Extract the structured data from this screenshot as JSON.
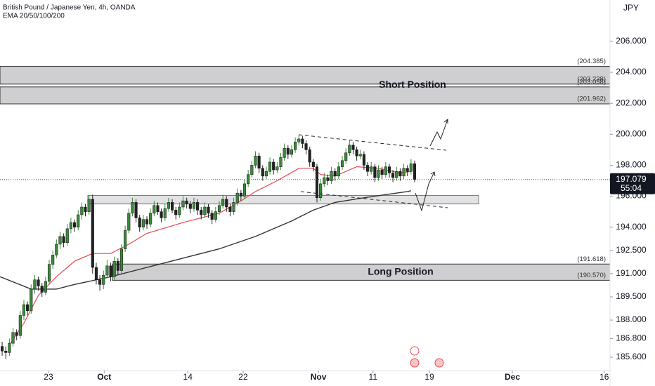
{
  "header": {
    "title": "British Pound / Japanese Yen, 4h, OANDA",
    "indicator": "EMA 20/50/100/200",
    "currency": "JPY"
  },
  "chart_data": {
    "type": "candlestick",
    "up_color": "#3a8a3a",
    "down_color": "#222222",
    "ylim": [
      184.74,
      208.67
    ],
    "xlim": [
      -0.6,
      168
    ],
    "yticks": [
      {
        "value": 206,
        "label": "206.000"
      },
      {
        "value": 204,
        "label": "204.000"
      },
      {
        "value": 202,
        "label": "202.000"
      },
      {
        "value": 200,
        "label": "200.000"
      },
      {
        "value": 198,
        "label": "198.000"
      },
      {
        "value": 196,
        "label": "196.000"
      },
      {
        "value": 194,
        "label": "194.000"
      },
      {
        "value": 192.5,
        "label": "192.500"
      },
      {
        "value": 191,
        "label": "191.000"
      },
      {
        "value": 189.5,
        "label": "189.500"
      },
      {
        "value": 188,
        "label": "188.000"
      },
      {
        "value": 186.8,
        "label": "186.800"
      },
      {
        "value": 185.6,
        "label": "185.600"
      }
    ],
    "xticks": [
      {
        "value": 12.8,
        "label": "23"
      },
      {
        "value": 28.2,
        "label": "Oct"
      },
      {
        "value": 51.3,
        "label": "14"
      },
      {
        "value": 66.6,
        "label": "22"
      },
      {
        "value": 87.4,
        "label": "Nov"
      },
      {
        "value": 102.5,
        "label": "11"
      },
      {
        "value": 118.1,
        "label": "19"
      },
      {
        "value": 141,
        "label": "Dec"
      },
      {
        "value": 166.4,
        "label": "16"
      }
    ],
    "candles": [
      [
        186.3,
        186.6,
        185.7,
        186.0
      ],
      [
        186.0,
        186.3,
        185.5,
        185.9
      ],
      [
        185.9,
        186.8,
        185.7,
        186.5
      ],
      [
        186.5,
        187.5,
        186.3,
        187.2
      ],
      [
        187.2,
        187.4,
        186.7,
        187.0
      ],
      [
        187.0,
        188.6,
        186.8,
        188.3
      ],
      [
        188.3,
        189.3,
        188.0,
        189.0
      ],
      [
        189.0,
        189.2,
        188.3,
        188.6
      ],
      [
        188.6,
        190.3,
        188.4,
        190.0
      ],
      [
        190.0,
        190.9,
        189.7,
        190.6
      ],
      [
        190.6,
        190.8,
        189.9,
        190.2
      ],
      [
        190.2,
        190.4,
        189.5,
        189.8
      ],
      [
        189.8,
        190.8,
        189.6,
        190.5
      ],
      [
        190.5,
        191.9,
        190.3,
        191.6
      ],
      [
        191.6,
        192.5,
        191.3,
        192.2
      ],
      [
        192.2,
        193.2,
        192.0,
        192.9
      ],
      [
        192.9,
        193.7,
        192.6,
        193.4
      ],
      [
        193.4,
        193.6,
        192.7,
        193.0
      ],
      [
        193.0,
        194.2,
        192.8,
        193.9
      ],
      [
        193.9,
        194.6,
        193.6,
        194.3
      ],
      [
        194.3,
        194.5,
        193.7,
        194.0
      ],
      [
        194.0,
        195.1,
        193.8,
        194.8
      ],
      [
        194.8,
        195.6,
        194.5,
        195.3
      ],
      [
        195.3,
        195.5,
        194.7,
        195.0
      ],
      [
        195.0,
        196.05,
        194.8,
        195.8
      ],
      [
        195.8,
        196.1,
        191.0,
        191.4
      ],
      [
        191.4,
        191.7,
        190.3,
        190.6
      ],
      [
        190.6,
        190.9,
        189.9,
        190.3
      ],
      [
        190.3,
        191.2,
        190.0,
        190.9
      ],
      [
        190.9,
        191.9,
        190.7,
        191.5
      ],
      [
        191.5,
        191.7,
        190.5,
        190.8
      ],
      [
        190.8,
        192.1,
        190.6,
        191.8
      ],
      [
        191.8,
        192.0,
        190.9,
        191.2
      ],
      [
        191.2,
        192.9,
        191.0,
        192.6
      ],
      [
        192.6,
        194.1,
        192.4,
        193.8
      ],
      [
        193.8,
        195.2,
        193.6,
        194.9
      ],
      [
        194.9,
        195.9,
        194.7,
        195.6
      ],
      [
        195.6,
        195.8,
        194.3,
        194.6
      ],
      [
        194.6,
        194.8,
        193.7,
        194.0
      ],
      [
        194.0,
        194.8,
        193.8,
        194.5
      ],
      [
        194.5,
        194.7,
        193.9,
        194.2
      ],
      [
        194.2,
        195.2,
        194.0,
        194.9
      ],
      [
        194.9,
        195.7,
        194.7,
        195.4
      ],
      [
        195.4,
        195.6,
        194.8,
        195.0
      ],
      [
        195.0,
        195.2,
        194.3,
        194.6
      ],
      [
        194.6,
        195.5,
        194.4,
        195.2
      ],
      [
        195.2,
        195.9,
        195.0,
        195.6
      ],
      [
        195.6,
        195.8,
        194.9,
        195.1
      ],
      [
        195.1,
        195.3,
        194.5,
        194.8
      ],
      [
        194.8,
        195.6,
        194.6,
        195.3
      ],
      [
        195.3,
        196.0,
        195.1,
        195.7
      ],
      [
        195.7,
        195.9,
        195.2,
        195.5
      ],
      [
        195.5,
        195.7,
        194.9,
        195.2
      ],
      [
        195.2,
        195.9,
        195.0,
        195.6
      ],
      [
        195.6,
        195.8,
        194.8,
        195.1
      ],
      [
        195.1,
        195.3,
        194.5,
        194.8
      ],
      [
        194.8,
        195.6,
        194.6,
        195.3
      ],
      [
        195.3,
        195.5,
        194.6,
        194.9
      ],
      [
        194.9,
        195.1,
        194.2,
        194.5
      ],
      [
        194.5,
        195.3,
        194.3,
        195.0
      ],
      [
        195.0,
        195.7,
        194.8,
        195.4
      ],
      [
        195.4,
        196.1,
        195.2,
        195.8
      ],
      [
        195.8,
        196.0,
        195.0,
        195.3
      ],
      [
        195.3,
        195.5,
        194.7,
        195.0
      ],
      [
        195.0,
        195.9,
        194.8,
        195.6
      ],
      [
        195.6,
        196.5,
        195.4,
        196.2
      ],
      [
        196.2,
        196.4,
        195.7,
        196.0
      ],
      [
        196.0,
        197.1,
        195.8,
        196.8
      ],
      [
        196.8,
        197.7,
        196.6,
        197.4
      ],
      [
        197.4,
        198.3,
        197.2,
        198.0
      ],
      [
        198.0,
        198.9,
        197.8,
        198.6
      ],
      [
        198.6,
        198.8,
        197.5,
        197.8
      ],
      [
        197.8,
        198.0,
        197.0,
        197.3
      ],
      [
        197.3,
        197.9,
        197.1,
        197.6
      ],
      [
        197.6,
        198.5,
        197.4,
        198.2
      ],
      [
        198.2,
        198.4,
        197.4,
        197.7
      ],
      [
        197.7,
        198.2,
        197.5,
        197.9
      ],
      [
        197.9,
        198.8,
        197.7,
        198.5
      ],
      [
        198.5,
        199.4,
        198.3,
        199.1
      ],
      [
        199.1,
        199.3,
        198.4,
        198.7
      ],
      [
        198.7,
        199.3,
        198.5,
        199.0
      ],
      [
        199.0,
        199.8,
        198.8,
        199.5
      ],
      [
        199.5,
        199.95,
        199.3,
        199.7
      ],
      [
        199.7,
        199.9,
        199.1,
        199.4
      ],
      [
        199.4,
        199.6,
        198.7,
        199.0
      ],
      [
        199.0,
        199.2,
        197.9,
        198.2
      ],
      [
        198.2,
        198.4,
        197.6,
        197.9
      ],
      [
        197.9,
        198.1,
        195.6,
        195.9
      ],
      [
        195.9,
        197.1,
        195.7,
        196.8
      ],
      [
        196.8,
        197.5,
        196.6,
        197.2
      ],
      [
        197.2,
        197.4,
        196.7,
        197.0
      ],
      [
        197.0,
        197.9,
        196.8,
        197.6
      ],
      [
        197.6,
        197.8,
        197.0,
        197.3
      ],
      [
        197.3,
        198.2,
        197.1,
        197.9
      ],
      [
        197.9,
        198.6,
        197.7,
        198.3
      ],
      [
        198.3,
        199.1,
        198.1,
        198.8
      ],
      [
        198.8,
        199.6,
        198.6,
        199.3
      ],
      [
        199.3,
        199.5,
        198.7,
        199.0
      ],
      [
        199.0,
        199.2,
        198.3,
        198.6
      ],
      [
        198.6,
        199.0,
        198.4,
        198.7
      ],
      [
        198.7,
        198.9,
        197.7,
        198.0
      ],
      [
        198.0,
        198.2,
        197.3,
        197.6
      ],
      [
        197.6,
        198.2,
        197.4,
        197.9
      ],
      [
        197.9,
        198.1,
        196.9,
        197.2
      ],
      [
        197.2,
        198.0,
        197.0,
        197.7
      ],
      [
        197.7,
        197.9,
        197.1,
        197.4
      ],
      [
        197.4,
        198.2,
        197.2,
        197.9
      ],
      [
        197.9,
        198.1,
        197.2,
        197.5
      ],
      [
        197.5,
        197.7,
        196.9,
        197.2
      ],
      [
        197.2,
        197.9,
        197.0,
        197.6
      ],
      [
        197.6,
        197.8,
        197.0,
        197.3
      ],
      [
        197.3,
        198.1,
        197.1,
        197.8
      ],
      [
        197.8,
        198.0,
        197.3,
        197.6
      ],
      [
        197.6,
        198.4,
        197.4,
        198.1
      ],
      [
        198.1,
        198.3,
        196.9,
        197.079
      ]
    ],
    "series": [
      {
        "color": "#e8474f",
        "x": [
          2,
          6,
          10,
          15,
          20,
          25,
          30,
          35,
          40,
          50,
          60,
          66,
          70,
          76,
          82,
          86,
          88,
          92,
          98,
          104,
          110,
          113
        ],
        "values": [
          186.4,
          187.8,
          189.6,
          190.8,
          191.8,
          192.3,
          192.3,
          192.9,
          193.6,
          194.3,
          194.9,
          195.7,
          196.3,
          197.0,
          197.8,
          197.8,
          197.4,
          197.3,
          197.9,
          197.8,
          197.5,
          197.6
        ]
      },
      {
        "color": "#333333",
        "x": [
          -0.6,
          8,
          15,
          20,
          30,
          40,
          50,
          60,
          70,
          80,
          86,
          92,
          100,
          106,
          112,
          113
        ],
        "values": [
          190.8,
          190.0,
          190.0,
          190.3,
          190.8,
          191.4,
          192.0,
          192.6,
          193.4,
          194.4,
          195.1,
          195.6,
          195.9,
          196.1,
          196.3,
          196.35
        ]
      }
    ],
    "last_price": {
      "value": 197.079,
      "label": "197.079",
      "countdown": "55:04"
    },
    "zones": [
      {
        "label": "Short Position",
        "levels": [
          {
            "value": 204.385,
            "label": "(204.385)"
          },
          {
            "value": 203.238,
            "label": "(203.238)"
          },
          {
            "value": 203.058,
            "label": "(203.058)"
          },
          {
            "value": 201.962,
            "label": "(201.962)"
          }
        ]
      },
      {
        "label": "Long Position",
        "levels": [
          {
            "value": 191.618,
            "label": "(191.618)"
          },
          {
            "value": 190.57,
            "label": "(190.570)"
          }
        ]
      }
    ],
    "support_zone": [
      196.05,
      195.5
    ]
  }
}
